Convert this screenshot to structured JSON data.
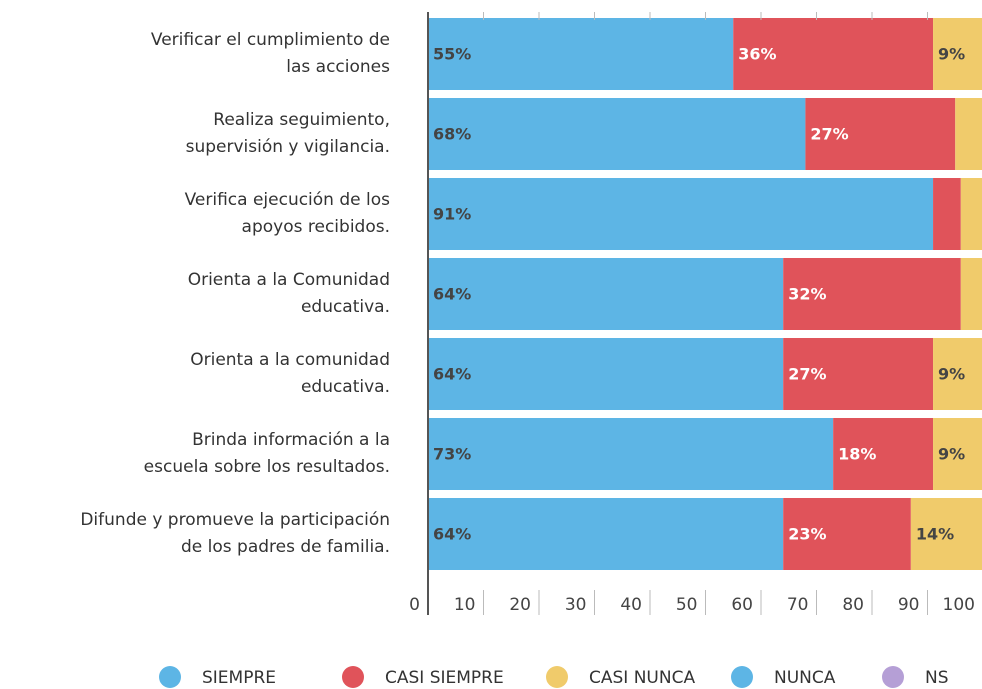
{
  "chart_data": {
    "type": "stacked-bar-horizontal",
    "categories": [
      "Verificar el cumplimiento de\nlas acciones",
      "Realiza seguimiento,\nsupervisión y vigilancia.",
      "Verifica ejecución de los\napoyos recibidos.",
      "Orienta a la Comunidad\neducativa.",
      "Orienta a la comunidad\neducativa.",
      "Brinda información a la\nescuela sobre  los  resultados.",
      "Difunde y promueve la participación\nde los padres de familia."
    ],
    "series": [
      {
        "name": "SIEMPRE",
        "color": "#5db5e5",
        "values": [
          55,
          68,
          91,
          64,
          64,
          73,
          64
        ],
        "value_labels": [
          "55%",
          "68%",
          "91%",
          "64%",
          "64%",
          "73%",
          "64%"
        ]
      },
      {
        "name": "CASI SIEMPRE",
        "color": "#e0535a",
        "values": [
          36,
          27,
          5,
          32,
          27,
          18,
          23
        ],
        "value_labels": [
          "36%",
          "27%",
          null,
          "32%",
          "27%",
          "18%",
          "23%"
        ]
      },
      {
        "name": "CASI NUNCA",
        "color": "#f0cb6b",
        "values": [
          9,
          5,
          4,
          4,
          9,
          9,
          14
        ],
        "value_labels": [
          "9%",
          null,
          null,
          null,
          "9%",
          "9%",
          "14%"
        ]
      },
      {
        "name": "NUNCA",
        "color": "#5db5e5",
        "values": [
          0,
          0,
          0,
          0,
          0,
          0,
          0
        ]
      },
      {
        "name": "NS",
        "color": "#b59fd6",
        "values": [
          0,
          0,
          0,
          0,
          0,
          0,
          0
        ]
      }
    ],
    "xlim": [
      0,
      100
    ],
    "xticks": [
      0,
      10,
      20,
      30,
      40,
      50,
      60,
      70,
      80,
      90,
      100
    ]
  }
}
